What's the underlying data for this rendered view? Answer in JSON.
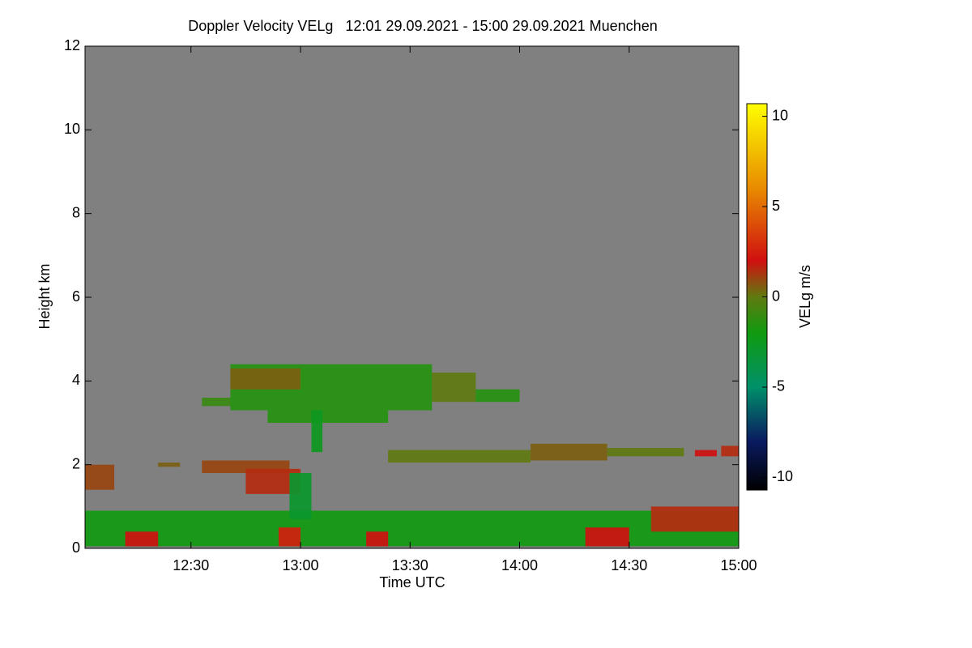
{
  "chart_data": {
    "type": "heatmap",
    "title": "Doppler Velocity VELg   12:01 29.09.2021 - 15:00 29.09.2021 Muenchen",
    "x_label": "Time UTC",
    "y_label": "Height km",
    "colorbar_label": "VELg m/s",
    "background": "#808080",
    "xlim": [
      12.0167,
      15.0
    ],
    "xticks": [
      {
        "value": 12.5,
        "label": "12:30"
      },
      {
        "value": 13.0,
        "label": "13:00"
      },
      {
        "value": 13.5,
        "label": "13:30"
      },
      {
        "value": 14.0,
        "label": "14:00"
      },
      {
        "value": 14.5,
        "label": "14:30"
      },
      {
        "value": 15.0,
        "label": "15:00"
      }
    ],
    "ylim": [
      0,
      12
    ],
    "yticks": [
      0,
      2,
      4,
      6,
      8,
      10,
      12
    ],
    "zlim": [
      -10.7,
      10.7
    ],
    "zticks": [
      10,
      5,
      0,
      -5,
      -10
    ],
    "colormap": [
      {
        "value": -10.7,
        "color": "#000000"
      },
      {
        "value": -8,
        "color": "#0a1a60"
      },
      {
        "value": -5,
        "color": "#00906a"
      },
      {
        "value": -2,
        "color": "#109a10"
      },
      {
        "value": 0,
        "color": "#607a10"
      },
      {
        "value": 2,
        "color": "#d01010"
      },
      {
        "value": 6,
        "color": "#e88a00"
      },
      {
        "value": 10.7,
        "color": "#ffff00"
      }
    ],
    "echoes": [
      {
        "x0": 12.0167,
        "x1": 15.0,
        "y0": 0.05,
        "y1": 0.9,
        "value": -2
      },
      {
        "x0": 12.2,
        "x1": 12.35,
        "y0": 0.05,
        "y1": 0.4,
        "value": 2
      },
      {
        "x0": 12.9,
        "x1": 13.0,
        "y0": 0.05,
        "y1": 0.5,
        "value": 2.5
      },
      {
        "x0": 13.3,
        "x1": 13.4,
        "y0": 0.05,
        "y1": 0.4,
        "value": 2
      },
      {
        "x0": 14.3,
        "x1": 14.5,
        "y0": 0.05,
        "y1": 0.5,
        "value": 2
      },
      {
        "x0": 14.6,
        "x1": 15.0,
        "y0": 0.4,
        "y1": 1.0,
        "value": 1.5
      },
      {
        "x0": 12.0167,
        "x1": 12.15,
        "y0": 1.4,
        "y1": 2.0,
        "value": 1
      },
      {
        "x0": 12.35,
        "x1": 12.45,
        "y0": 1.95,
        "y1": 2.05,
        "value": 0.5
      },
      {
        "x0": 12.55,
        "x1": 12.95,
        "y0": 1.8,
        "y1": 2.1,
        "value": 1
      },
      {
        "x0": 12.75,
        "x1": 13.0,
        "y0": 1.3,
        "y1": 1.9,
        "value": 1.5
      },
      {
        "x0": 12.95,
        "x1": 13.05,
        "y0": 0.7,
        "y1": 1.8,
        "value": -3
      },
      {
        "x0": 12.85,
        "x1": 13.4,
        "y0": 3.0,
        "y1": 3.3,
        "value": -1.5
      },
      {
        "x0": 12.68,
        "x1": 13.6,
        "y0": 3.3,
        "y1": 4.4,
        "value": -1.5
      },
      {
        "x0": 12.68,
        "x1": 13.0,
        "y0": 3.8,
        "y1": 4.3,
        "value": 0.5
      },
      {
        "x0": 13.6,
        "x1": 13.8,
        "y0": 3.5,
        "y1": 4.2,
        "value": 0
      },
      {
        "x0": 13.8,
        "x1": 14.0,
        "y0": 3.5,
        "y1": 3.8,
        "value": -1.5
      },
      {
        "x0": 13.05,
        "x1": 13.1,
        "y0": 2.3,
        "y1": 3.3,
        "value": -2.5
      },
      {
        "x0": 12.55,
        "x1": 12.68,
        "y0": 3.4,
        "y1": 3.6,
        "value": -1
      },
      {
        "x0": 13.4,
        "x1": 14.05,
        "y0": 2.05,
        "y1": 2.35,
        "value": 0
      },
      {
        "x0": 14.05,
        "x1": 14.4,
        "y0": 2.1,
        "y1": 2.5,
        "value": 0.5
      },
      {
        "x0": 14.4,
        "x1": 14.75,
        "y0": 2.2,
        "y1": 2.4,
        "value": 0
      },
      {
        "x0": 14.8,
        "x1": 14.9,
        "y0": 2.2,
        "y1": 2.35,
        "value": 2
      },
      {
        "x0": 14.92,
        "x1": 15.0,
        "y0": 2.2,
        "y1": 2.45,
        "value": 1.5
      }
    ]
  }
}
